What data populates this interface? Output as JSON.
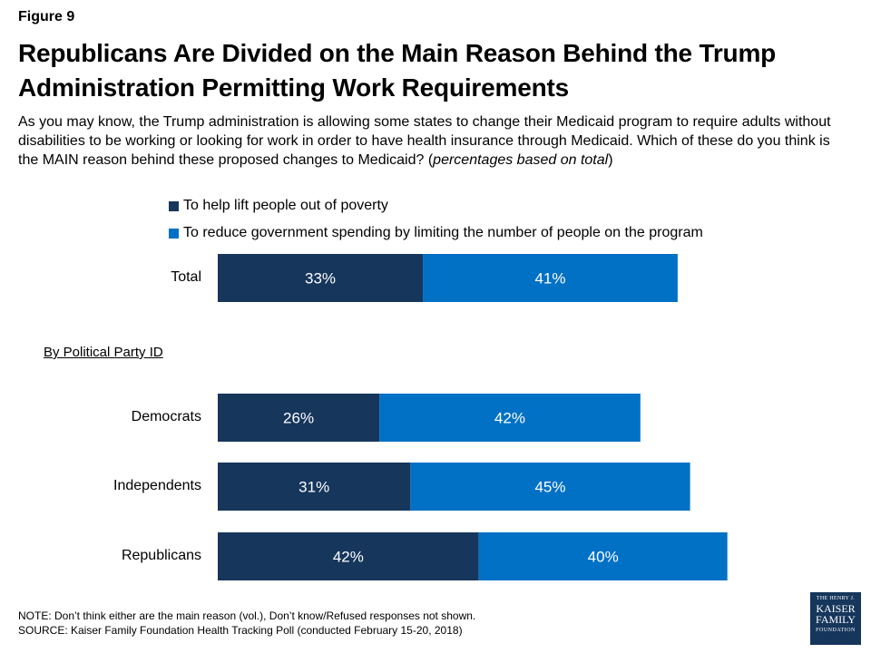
{
  "figure_label": "Figure 9",
  "title": "Republicans Are Divided on the Main Reason Behind the Trump Administration Permitting Work Requirements",
  "subtitle_main": "As you may know, the Trump administration is allowing some states to change their Medicaid program to require adults without disabilities to be working or looking for work in order to have health insurance through Medicaid. Which of these do you think is the MAIN reason behind these proposed changes to Medicaid? (",
  "subtitle_italic": "percentages based on total",
  "subtitle_end": ")",
  "group_heading": "By Political Party ID",
  "notes": {
    "note": "NOTE: Don’t think either are the main reason (vol.), Don’t know/Refused responses not shown.",
    "source": "SOURCE: Kaiser Family Foundation Health Tracking Poll (conducted February 15-20, 2018)"
  },
  "logo": {
    "line1": "THE HENRY J.",
    "line2": "KAISER",
    "line3": "FAMILY",
    "line4": "FOUNDATION"
  },
  "colors": {
    "dark_navy": "#16365c",
    "blue": "#0071c5"
  },
  "chart_data": {
    "type": "bar",
    "orientation": "horizontal",
    "stacked": true,
    "categories": [
      "Total",
      "Democrats",
      "Independents",
      "Republicans"
    ],
    "series": [
      {
        "name": "To help lift people out of poverty",
        "color": "#16365c",
        "values": [
          33,
          26,
          31,
          42
        ]
      },
      {
        "name": "To reduce government spending by limiting the number of people on the program",
        "color": "#0071c5",
        "values": [
          41,
          42,
          45,
          40
        ]
      }
    ],
    "value_suffix": "%",
    "legend_position": "top",
    "grid": false,
    "xlim": [
      0,
      100
    ]
  }
}
